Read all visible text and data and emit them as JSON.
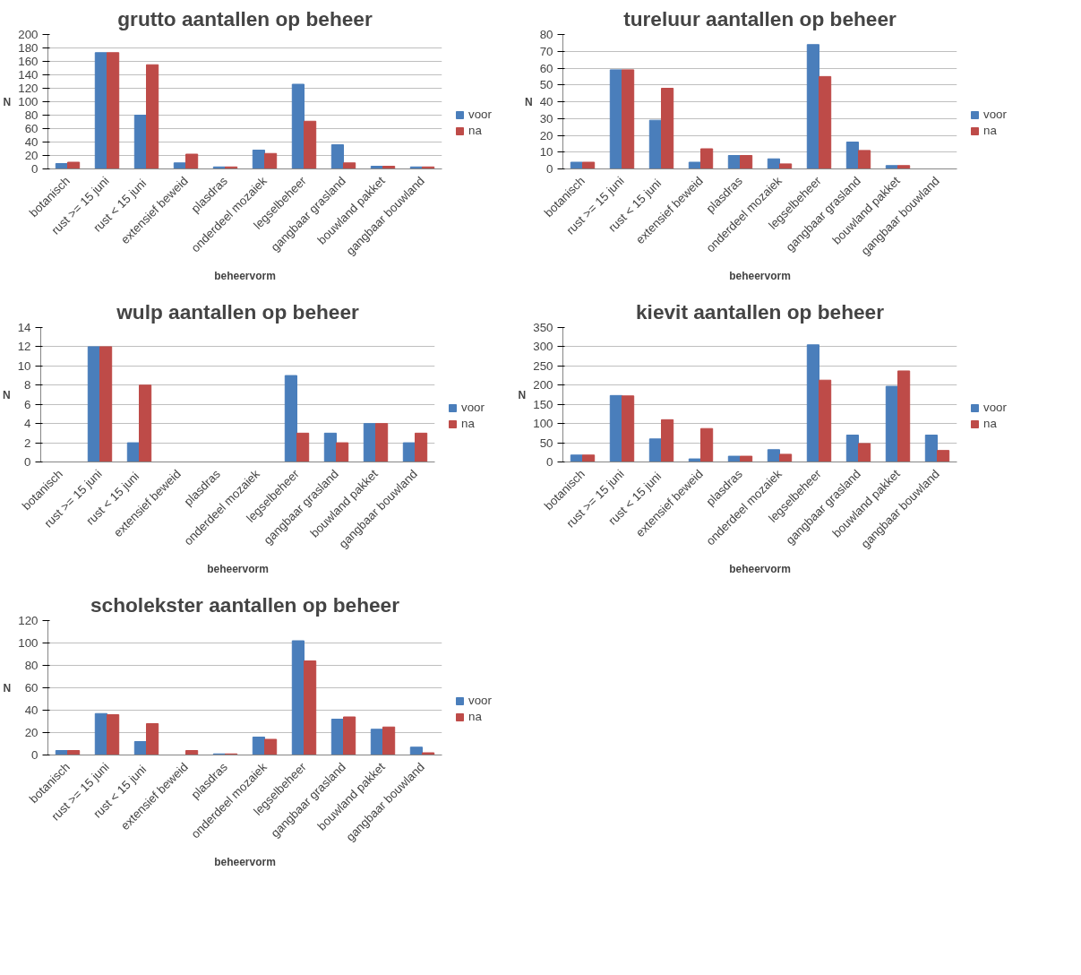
{
  "chart_data": [
    {
      "type": "bar",
      "title": "grutto aantallen op beheer",
      "xlabel": "beheervorm",
      "ylabel": "N",
      "categories": [
        "botanisch",
        "rust >= 15 juni",
        "rust  < 15 juni",
        "extensief beweid",
        "plasdras",
        "onderdeel mozaiek",
        "legselbeheer",
        "gangbaar grasland",
        "bouwland pakket",
        "gangbaar bouwland"
      ],
      "ylim": [
        0,
        200
      ],
      "yticks": [
        0,
        20,
        40,
        60,
        80,
        100,
        120,
        140,
        160,
        180,
        200
      ],
      "grid": "y",
      "legend": "right",
      "series": [
        {
          "name": "voor",
          "color": "#4a7ebb",
          "values": [
            8,
            173,
            80,
            9,
            3,
            28,
            126,
            36,
            4,
            3
          ]
        },
        {
          "name": "na",
          "color": "#be4b48",
          "values": [
            10,
            173,
            155,
            22,
            3,
            23,
            71,
            9,
            4,
            3
          ]
        }
      ]
    },
    {
      "type": "bar",
      "title": "tureluur aantallen op beheer",
      "xlabel": "beheervorm",
      "ylabel": "N",
      "categories": [
        "botanisch",
        "rust >= 15 juni",
        "rust  < 15 juni",
        "extensief beweid",
        "plasdras",
        "onderdeel mozaiek",
        "legselbeheer",
        "gangbaar grasland",
        "bouwland pakket",
        "gangbaar bouwland"
      ],
      "ylim": [
        0,
        80
      ],
      "yticks": [
        0,
        10,
        20,
        30,
        40,
        50,
        60,
        70,
        80
      ],
      "grid": "y",
      "legend": "right",
      "series": [
        {
          "name": "voor",
          "color": "#4a7ebb",
          "values": [
            4,
            59,
            29,
            4,
            8,
            6,
            74,
            16,
            2,
            0
          ]
        },
        {
          "name": "na",
          "color": "#be4b48",
          "values": [
            4,
            59,
            48,
            12,
            8,
            3,
            55,
            11,
            2,
            0
          ]
        }
      ]
    },
    {
      "type": "bar",
      "title": "wulp aantallen op beheer",
      "xlabel": "beheervorm",
      "ylabel": "N",
      "categories": [
        "botanisch",
        "rust >= 15 juni",
        "rust  < 15 juni",
        "extensief beweid",
        "plasdras",
        "onderdeel mozaiek",
        "legselbeheer",
        "gangbaar grasland",
        "bouwland pakket",
        "gangbaar bouwland"
      ],
      "ylim": [
        0,
        14
      ],
      "yticks": [
        0,
        2,
        4,
        6,
        8,
        10,
        12,
        14
      ],
      "grid": "y",
      "legend": "right",
      "series": [
        {
          "name": "voor",
          "color": "#4a7ebb",
          "values": [
            0,
            12,
            2,
            0,
            0,
            0,
            9,
            3,
            4,
            2
          ]
        },
        {
          "name": "na",
          "color": "#be4b48",
          "values": [
            0,
            12,
            8,
            0,
            0,
            0,
            3,
            2,
            4,
            3
          ]
        }
      ]
    },
    {
      "type": "bar",
      "title": "kievit aantallen op beheer",
      "xlabel": "beheervorm",
      "ylabel": "N",
      "categories": [
        "botanisch",
        "rust >= 15 juni",
        "rust  < 15 juni",
        "extensief beweid",
        "plasdras",
        "onderdeel mozaiek",
        "legselbeheer",
        "gangbaar grasland",
        "bouwland pakket",
        "gangbaar bouwland"
      ],
      "ylim": [
        0,
        350
      ],
      "yticks": [
        0,
        50,
        100,
        150,
        200,
        250,
        300,
        350
      ],
      "grid": "y",
      "legend": "right",
      "series": [
        {
          "name": "voor",
          "color": "#4a7ebb",
          "values": [
            18,
            173,
            60,
            8,
            15,
            32,
            305,
            70,
            197,
            70
          ]
        },
        {
          "name": "na",
          "color": "#be4b48",
          "values": [
            18,
            172,
            110,
            87,
            15,
            20,
            213,
            48,
            237,
            30
          ]
        }
      ]
    },
    {
      "type": "bar",
      "title": "scholekster aantallen op beheer",
      "xlabel": "beheervorm",
      "ylabel": "N",
      "categories": [
        "botanisch",
        "rust >= 15 juni",
        "rust  < 15 juni",
        "extensief beweid",
        "plasdras",
        "onderdeel mozaiek",
        "legselbeheer",
        "gangbaar grasland",
        "bouwland pakket",
        "gangbaar bouwland"
      ],
      "ylim": [
        0,
        120
      ],
      "yticks": [
        0,
        20,
        40,
        60,
        80,
        100,
        120
      ],
      "grid": "y",
      "legend": "right",
      "series": [
        {
          "name": "voor",
          "color": "#4a7ebb",
          "values": [
            4,
            37,
            12,
            0,
            1,
            16,
            102,
            32,
            23,
            7
          ]
        },
        {
          "name": "na",
          "color": "#be4b48",
          "values": [
            4,
            36,
            28,
            4,
            1,
            14,
            84,
            34,
            25,
            2
          ]
        }
      ]
    }
  ]
}
